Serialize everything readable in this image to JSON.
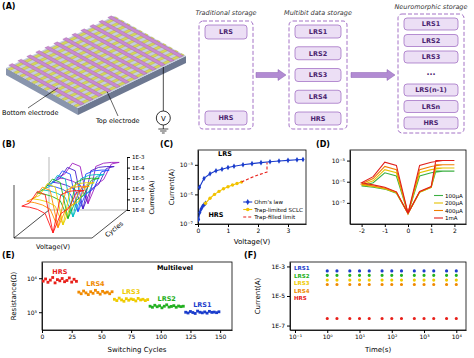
{
  "diagram": {
    "title": "(A)",
    "array": {
      "bottom_label": "Bottom electrode",
      "top_label": "Top electrode",
      "meter": "V"
    },
    "columns": [
      {
        "title": "Traditional storage",
        "states": [
          "LRS",
          "HRS"
        ]
      },
      {
        "title": "Multibit data storage",
        "states": [
          "LRS1",
          "LRS2",
          "LRS3",
          "LRS4",
          "HRS"
        ]
      },
      {
        "title": "Neuromorphic storage",
        "states": [
          "LRS1",
          "LRS2",
          "LRS3",
          "...",
          "LRS(n-1)",
          "LRSn",
          "HRS"
        ]
      }
    ]
  },
  "chart_data": [
    {
      "title": "(B)",
      "type": "line",
      "log": "y",
      "tick_labels": "y",
      "x_label": "Voltage(V)",
      "y_label": "Current(A)",
      "z_label": "Cycles",
      "xlim": [
        -2.5,
        2.5
      ],
      "ylim": [
        1e-08,
        0.001
      ],
      "yticks": [
        {
          "value": 1e-08,
          "label": "1E-8"
        },
        {
          "value": 1e-07,
          "label": "1E-7"
        },
        {
          "value": 1e-06,
          "label": "1E-6"
        },
        {
          "value": 1e-05,
          "label": "1E-5"
        },
        {
          "value": 0.0001,
          "label": "1E-4"
        },
        {
          "value": 0.001,
          "label": "1E-3"
        }
      ],
      "x": [
        0,
        0.5,
        1,
        1.5,
        2,
        1.5,
        1,
        0.5,
        0,
        -0.5,
        -1,
        -1.5,
        -2,
        -1.5,
        -1,
        -0.5,
        0
      ],
      "series": [
        {
          "color": "#ff1a1a",
          "values": [
            3e-08,
            2e-06,
            6e-06,
            0.0002,
            0.0003,
            0.0003,
            0.00025,
            0.00012,
            3e-08,
            0.00012,
            0.00025,
            2e-05,
            1e-05,
            8e-06,
            5e-06,
            2e-06,
            3e-08
          ]
        },
        {
          "color": "#ff8c00",
          "values": [
            4e-08,
            2.2e-06,
            7e-06,
            0.00022,
            0.00031,
            0.00031,
            0.00026,
            0.00013,
            4e-08,
            0.00013,
            0.00026,
            2.5e-05,
            1.2e-05,
            9e-06,
            5.5e-06,
            2.2e-06,
            4e-08
          ]
        },
        {
          "color": "#e8d000",
          "values": [
            3e-08,
            1.8e-06,
            5e-06,
            0.00019,
            0.00029,
            0.00029,
            0.00024,
            0.00011,
            3e-08,
            0.00011,
            0.00024,
            1.8e-05,
            9e-06,
            7e-06,
            4.5e-06,
            1.8e-06,
            3e-08
          ]
        },
        {
          "color": "#1fb31f",
          "values": [
            5e-08,
            2.5e-06,
            8e-06,
            0.00021,
            0.00032,
            0.00032,
            0.00027,
            0.00013,
            5e-08,
            0.00013,
            0.00027,
            3e-05,
            1.3e-05,
            1e-05,
            6e-06,
            2.5e-06,
            5e-08
          ]
        },
        {
          "color": "#00bcc4",
          "values": [
            3e-08,
            2e-06,
            6.5e-06,
            0.0002,
            0.0003,
            0.0003,
            0.00025,
            0.00012,
            3e-08,
            0.00012,
            0.00025,
            2.2e-05,
            1.1e-05,
            8.5e-06,
            5e-06,
            2.1e-06,
            3e-08
          ]
        },
        {
          "color": "#1f4fff",
          "values": [
            4e-08,
            1.9e-06,
            5.5e-06,
            0.00023,
            0.00033,
            0.00033,
            0.00028,
            0.00014,
            4e-08,
            0.00014,
            0.00028,
            2.6e-05,
            1.2e-05,
            9e-06,
            5.2e-06,
            1.9e-06,
            4e-08
          ]
        },
        {
          "color": "#4b1fc8",
          "values": [
            3e-08,
            2.1e-06,
            6.2e-06,
            0.0002,
            0.0003,
            0.0003,
            0.00025,
            0.00012,
            3e-08,
            0.00012,
            0.00025,
            2.1e-05,
            1e-05,
            8e-06,
            4.8e-06,
            2e-06,
            3e-08
          ]
        },
        {
          "color": "#a01fc0",
          "values": [
            4e-08,
            2.3e-06,
            7.5e-06,
            0.00022,
            0.00031,
            0.00031,
            0.00026,
            0.00013,
            4e-08,
            0.00013,
            0.00026,
            2.4e-05,
            1.1e-05,
            9e-06,
            5.3e-06,
            2.3e-06,
            4e-08
          ]
        }
      ]
    },
    {
      "title": "(C)",
      "type": "line",
      "log": "y",
      "legend": "lower right",
      "x_label": "Voltage(V)",
      "y_label": "Current(A)",
      "xlim": [
        0,
        3.6
      ],
      "ylim": [
        1e-07,
        0.01
      ],
      "xticks": [
        0,
        1,
        2,
        3
      ],
      "yticks": [
        {
          "value": 1e-07,
          "label": "10⁻⁷"
        },
        {
          "value": 1e-05,
          "label": "10⁻⁵"
        },
        {
          "value": 0.001,
          "label": "10⁻³"
        }
      ],
      "annotations": [
        {
          "text": "LRS",
          "x": 0.9,
          "y": 0.004
        },
        {
          "text": "HRS",
          "x": 0.6,
          "y": 3e-07
        }
      ],
      "series": [
        {
          "name": "Ohm's law",
          "color": "#1a3ccc",
          "marker": "diamond",
          "x": [
            0.02,
            0.06,
            0.1,
            0.15,
            0.2,
            0.25,
            0.3,
            0.05,
            0.2,
            0.4,
            0.6,
            0.8,
            1,
            1.2,
            1.5,
            1.8,
            2.1,
            2.4,
            2.7,
            3,
            3.3,
            3.5
          ],
          "values": [
            2e-07,
            6e-07,
            1e-06,
            1.5e-06,
            2e-06,
            2.5e-06,
            null,
            3e-05,
            0.00012,
            0.00025,
            0.0004,
            0.0005,
            0.00065,
            0.0008,
            0.001,
            0.0012,
            0.0014,
            0.0016,
            0.0018,
            0.002,
            0.0022,
            0.0023
          ]
        },
        {
          "name": "Trap-limited SCLC",
          "color": "#f2c200",
          "marker": "circle",
          "x": [
            0.25,
            0.4,
            0.55,
            0.7,
            0.85,
            1,
            1.15,
            1.3,
            1.45
          ],
          "values": [
            2.5e-06,
            5.5e-06,
            1e-05,
            1.6e-05,
            2.4e-05,
            3.3e-05,
            4.3e-05,
            5.5e-05,
            6.8e-05
          ]
        },
        {
          "name": "Trap-filled limit",
          "color": "#e8201a",
          "line_style": "dashed",
          "x": [
            1.45,
            1.6,
            1.75,
            1.9,
            2.05,
            2.2,
            2.3,
            2.3
          ],
          "values": [
            6.8e-05,
            9.5e-05,
            0.00013,
            0.00017,
            0.00022,
            0.00028,
            0.00032,
            0.00145
          ]
        }
      ]
    },
    {
      "title": "(D)",
      "type": "line",
      "log": "y",
      "legend": "lower right",
      "xlim": [
        -2.5,
        2.5
      ],
      "ylim": [
        1e-09,
        0.01
      ],
      "xticks": [
        -2,
        -1,
        0,
        1,
        2
      ],
      "yticks": [
        {
          "value": 1e-07,
          "label": "10⁻⁷"
        },
        {
          "value": 1e-05,
          "label": "10⁻⁵"
        },
        {
          "value": 0.001,
          "label": "10⁻³"
        }
      ],
      "x": [
        0,
        0.5,
        1,
        1.2,
        1.5,
        2,
        1.5,
        1,
        0.5,
        0,
        -0.5,
        -1,
        -1.5,
        -2,
        -1.5,
        -1,
        -0.5,
        0
      ],
      "series": [
        {
          "name": "100μA",
          "color": "#3cb043",
          "values": [
            1e-08,
            1e-06,
            3e-06,
            0.0001,
            0.0001,
            0.0001,
            0.0001,
            7e-05,
            3.5e-05,
            1e-08,
            3.5e-05,
            7e-05,
            8e-06,
            4e-06,
            3e-06,
            2e-06,
            8e-07,
            1e-08
          ]
        },
        {
          "name": "200μA",
          "color": "#e6c200",
          "values": [
            1e-08,
            1e-06,
            3e-06,
            0.0002,
            0.0002,
            0.0002,
            0.0002,
            0.00014,
            7e-05,
            1e-08,
            7e-05,
            0.00014,
            1.2e-05,
            5e-06,
            3.5e-06,
            2.2e-06,
            9e-07,
            1e-08
          ]
        },
        {
          "name": "400μA",
          "color": "#f07d00",
          "values": [
            1e-08,
            1.1e-06,
            3.2e-06,
            0.0004,
            0.0004,
            0.0004,
            0.0004,
            0.00028,
            0.00014,
            1e-08,
            0.00014,
            0.00028,
            2e-05,
            6e-06,
            4e-06,
            2.5e-06,
            1e-06,
            1e-08
          ]
        },
        {
          "name": "1mA",
          "color": "#e0201b",
          "values": [
            1e-08,
            1.2e-06,
            3.5e-06,
            0.001,
            0.001,
            0.001,
            0.001,
            0.0007,
            0.00035,
            1e-08,
            0.00035,
            0.0007,
            3e-05,
            8e-06,
            5e-06,
            3e-06,
            1.1e-06,
            1e-08
          ]
        }
      ]
    },
    {
      "title": "(E)",
      "type": "scatter",
      "log": "y",
      "marker": "square",
      "x_label": "Switching Cycles",
      "y_label": "Resistance(Ω)",
      "xlim": [
        0,
        160
      ],
      "ylim": [
        300,
        30000
      ],
      "xticks": [
        0,
        25,
        50,
        75,
        100,
        125,
        150
      ],
      "yticks": [
        {
          "value": 1000,
          "label": "10³"
        },
        {
          "value": 10000,
          "label": "10⁴"
        }
      ],
      "annotations": [
        {
          "text": "Multilevel",
          "x": 112,
          "y": 17000
        }
      ],
      "series": [
        {
          "name": "HRS",
          "color": "#e8201a",
          "x": [
            1,
            3,
            5,
            7,
            9,
            11,
            13,
            15,
            17,
            19,
            21,
            23,
            25,
            27,
            29
          ],
          "values": [
            8200,
            9500,
            7600,
            8800,
            10500,
            7300,
            9100,
            8400,
            9800,
            7900,
            8600,
            10200,
            7700,
            9300,
            8100
          ]
        },
        {
          "name": "LRS4",
          "color": "#f08a00",
          "x": [
            31,
            33,
            35,
            37,
            39,
            41,
            43,
            45,
            47,
            49,
            51,
            53,
            55,
            57,
            59
          ],
          "values": [
            3900,
            3500,
            4200,
            3700,
            3300,
            4000,
            3600,
            4400,
            3800,
            3400,
            4100,
            3700,
            3900,
            3500,
            4000
          ]
        },
        {
          "name": "LRS3",
          "color": "#efcb00",
          "x": [
            61,
            63,
            65,
            67,
            69,
            71,
            73,
            75,
            77,
            79,
            81,
            83,
            85,
            87,
            89
          ],
          "values": [
            2400,
            2200,
            2600,
            2300,
            2100,
            2500,
            2250,
            2450,
            2350,
            2150,
            2550,
            2300,
            2400,
            2200,
            2350
          ]
        },
        {
          "name": "LRS2",
          "color": "#22b020",
          "x": [
            91,
            93,
            95,
            97,
            99,
            101,
            103,
            105,
            107,
            109,
            111,
            113,
            115,
            117,
            119
          ],
          "values": [
            1500,
            1400,
            1600,
            1450,
            1550,
            1350,
            1500,
            1650,
            1420,
            1480,
            1560,
            1400,
            1520,
            1460,
            1500
          ]
        },
        {
          "name": "LRS1",
          "color": "#1a3ccc",
          "x": [
            121,
            123,
            125,
            127,
            129,
            131,
            133,
            135,
            137,
            139,
            141,
            143,
            145,
            147,
            149
          ],
          "values": [
            1000,
            950,
            1050,
            980,
            920,
            1080,
            1000,
            960,
            1020,
            940,
            1060,
            990,
            1010,
            970,
            1030
          ]
        }
      ]
    },
    {
      "title": "(F)",
      "type": "scatter",
      "log": true,
      "marker": "circle",
      "legend": "upper left",
      "x_label": "Time(s)",
      "y_label": "Current(A)",
      "xlim": [
        0.07,
        20000
      ],
      "ylim": [
        5e-08,
        0.002
      ],
      "xticks": [
        {
          "value": 0.1,
          "label": "10⁻¹"
        },
        {
          "value": 1,
          "label": "10⁰"
        },
        {
          "value": 10,
          "label": "10¹"
        },
        {
          "value": 100,
          "label": "10²"
        },
        {
          "value": 1000,
          "label": "10³"
        },
        {
          "value": 10000,
          "label": "10⁴"
        }
      ],
      "yticks": [
        {
          "value": 1e-07,
          "label": "1E-7"
        },
        {
          "value": 1e-05,
          "label": "1E-5"
        },
        {
          "value": 0.001,
          "label": "1E-3"
        }
      ],
      "x": [
        1,
        2,
        5,
        10,
        20,
        50,
        100,
        200,
        500,
        1000,
        2000,
        5000,
        10000
      ],
      "series": [
        {
          "name": "LRS1",
          "color": "#1a3ccc",
          "values": [
            0.0005,
            0.0005,
            0.0005,
            0.0005,
            0.0005,
            0.0005,
            0.0005,
            0.0005,
            0.0005,
            0.0005,
            0.0005,
            0.0005,
            0.0005
          ]
        },
        {
          "name": "LRS2",
          "color": "#22b020",
          "values": [
            0.00025,
            0.00025,
            0.00025,
            0.00025,
            0.00025,
            0.00025,
            0.00025,
            0.00025,
            0.00025,
            0.00025,
            0.00025,
            0.00025,
            0.00025
          ]
        },
        {
          "name": "LRS3",
          "color": "#efcb00",
          "values": [
            0.00012,
            0.00012,
            0.00012,
            0.00012,
            0.00012,
            0.00012,
            0.00012,
            0.00012,
            0.00012,
            0.00012,
            0.00012,
            0.00012,
            0.00012
          ]
        },
        {
          "name": "LRS4",
          "color": "#f08a00",
          "values": [
            6e-05,
            6e-05,
            6e-05,
            6e-05,
            6e-05,
            6e-05,
            6e-05,
            6e-05,
            6e-05,
            6e-05,
            6e-05,
            6e-05,
            6e-05
          ]
        },
        {
          "name": "HRS",
          "color": "#e8201a",
          "values": [
            3e-07,
            3e-07,
            3e-07,
            3e-07,
            3e-07,
            3e-07,
            3e-07,
            3e-07,
            3e-07,
            3e-07,
            3e-07,
            3e-07,
            3e-07
          ]
        }
      ]
    }
  ]
}
